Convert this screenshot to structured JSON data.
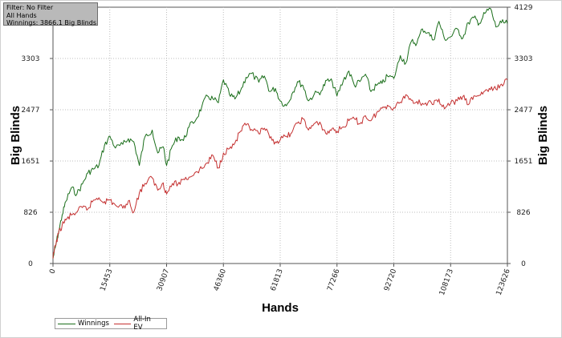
{
  "info": {
    "filter": "Filter: No Filter",
    "hands": "All Hands",
    "winnings": "Winnings: 3866.1 Big Blinds"
  },
  "colors": {
    "winnings": "#1a6e1a",
    "allin_ev": "#c43030",
    "grid": "#bdbdbd",
    "axis": "#555555"
  },
  "chart_data": {
    "type": "line",
    "xlabel": "Hands",
    "ylabel": "Big Blinds",
    "ylabel_right": "Big Blinds",
    "xlim": [
      0,
      123626
    ],
    "ylim": [
      0,
      4129
    ],
    "x_ticks": [
      "0",
      "15453",
      "30907",
      "46360",
      "61813",
      "77266",
      "92720",
      "108173",
      "123626"
    ],
    "y_ticks": [
      "0",
      "826",
      "1651",
      "2477",
      "3303",
      "4129"
    ],
    "grid": true,
    "legend_position": "bottom-left",
    "series": [
      {
        "name": "Winnings",
        "x": [
          0,
          600,
          1500,
          2500,
          3500,
          5000,
          6500,
          8000,
          9500,
          11000,
          12500,
          14000,
          15500,
          17000,
          19000,
          20500,
          22000,
          23500,
          25000,
          27000,
          28500,
          30000,
          30907,
          32500,
          34000,
          35500,
          37000,
          39000,
          40500,
          42000,
          43500,
          45000,
          46360,
          48000,
          49500,
          51000,
          52500,
          54000,
          56000,
          57500,
          59000,
          60500,
          61813,
          63500,
          65000,
          66500,
          68000,
          69500,
          71000,
          73000,
          74500,
          76000,
          77266,
          79000,
          80500,
          82000,
          83500,
          85000,
          86500,
          88000,
          89500,
          91000,
          92720,
          94500,
          96000,
          97500,
          99000,
          100500,
          102000,
          103500,
          105000,
          106500,
          108173,
          110000,
          111500,
          113000,
          114500,
          116000,
          117500,
          119000,
          120500,
          122000,
          123626
        ],
        "values": [
          80,
          250,
          500,
          780,
          1000,
          1220,
          1120,
          1280,
          1460,
          1520,
          1580,
          1900,
          2050,
          1860,
          1920,
          2010,
          1960,
          1580,
          2040,
          2150,
          1780,
          1880,
          1580,
          1900,
          2040,
          1980,
          2200,
          2330,
          2530,
          2700,
          2650,
          2590,
          2960,
          2720,
          2650,
          2780,
          3000,
          3060,
          2920,
          3020,
          2770,
          2820,
          2620,
          2540,
          2730,
          2930,
          2870,
          2620,
          2720,
          2780,
          2950,
          2920,
          2700,
          2950,
          3100,
          2870,
          2930,
          3050,
          2770,
          2870,
          2900,
          3020,
          2980,
          3350,
          3230,
          3580,
          3550,
          3780,
          3720,
          3600,
          3900,
          3620,
          3650,
          3780,
          3630,
          3880,
          3960,
          3870,
          4030,
          4110,
          3810,
          3880,
          3866
        ]
      },
      {
        "name": "All-In EV",
        "x": [
          0,
          600,
          1500,
          2500,
          3500,
          5000,
          6500,
          8000,
          9500,
          11000,
          12500,
          14000,
          15500,
          17000,
          19000,
          20500,
          22000,
          23500,
          25000,
          27000,
          28500,
          30000,
          30907,
          32500,
          34000,
          35500,
          37000,
          39000,
          40500,
          42000,
          43500,
          45000,
          46360,
          48000,
          49500,
          51000,
          52500,
          54000,
          56000,
          57500,
          59000,
          60500,
          61813,
          63500,
          65000,
          66500,
          68000,
          69500,
          71000,
          73000,
          74500,
          76000,
          77266,
          79000,
          80500,
          82000,
          83500,
          85000,
          86500,
          88000,
          89500,
          91000,
          92720,
          94500,
          96000,
          97500,
          99000,
          100500,
          102000,
          103500,
          105000,
          106500,
          108173,
          110000,
          111500,
          113000,
          114500,
          116000,
          117500,
          119000,
          120500,
          122000,
          123626
        ],
        "values": [
          80,
          280,
          480,
          620,
          700,
          780,
          830,
          900,
          880,
          1020,
          1060,
          1000,
          1020,
          940,
          890,
          1010,
          830,
          1140,
          1290,
          1380,
          1180,
          1300,
          1120,
          1290,
          1280,
          1360,
          1390,
          1480,
          1530,
          1620,
          1740,
          1540,
          1780,
          1850,
          1940,
          2130,
          2230,
          2160,
          2090,
          2180,
          2020,
          1960,
          1990,
          2050,
          2110,
          2260,
          2330,
          2150,
          2250,
          2230,
          2080,
          2180,
          2130,
          2200,
          2300,
          2330,
          2250,
          2380,
          2300,
          2420,
          2500,
          2550,
          2510,
          2600,
          2720,
          2630,
          2610,
          2580,
          2590,
          2560,
          2650,
          2490,
          2580,
          2620,
          2690,
          2560,
          2700,
          2710,
          2780,
          2800,
          2810,
          2890,
          2960
        ]
      }
    ]
  }
}
